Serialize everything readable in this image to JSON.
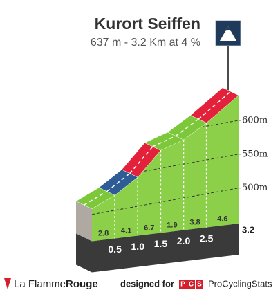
{
  "chart_data": {
    "type": "climb-profile",
    "title": "Kurort Seiffen",
    "subtitle": "637 m - 3.2 Km at 4 %",
    "elevation": 637,
    "xlim": [
      0,
      3.2
    ],
    "ylim": [
      470,
      650
    ],
    "yticks": [
      {
        "value": 500,
        "label": "500m"
      },
      {
        "value": 550,
        "label": "550m"
      },
      {
        "value": 600,
        "label": "600m"
      }
    ],
    "distances": [
      0.5,
      {
        "value": 1,
        "label": "1.0"
      },
      1.5,
      {
        "value": 2,
        "label": "2.0"
      },
      2.5,
      3.2
    ],
    "gradients": {
      "values": [
        2.8,
        4.1,
        6.7,
        1.9,
        3.8,
        4.6
      ],
      "colors": [
        "#7cc83a",
        "#2e5d95",
        "#e3213b",
        "#7cc83a",
        "#7cc83a",
        "#e3213b"
      ]
    },
    "face_color": "#8cd04a",
    "grid": true
  },
  "footer": {
    "brand": [
      "La Flamme",
      "Rouge"
    ],
    "designed": "designed for",
    "pcs": [
      "P",
      "C",
      "S"
    ],
    "site": "ProCyclingStats"
  }
}
